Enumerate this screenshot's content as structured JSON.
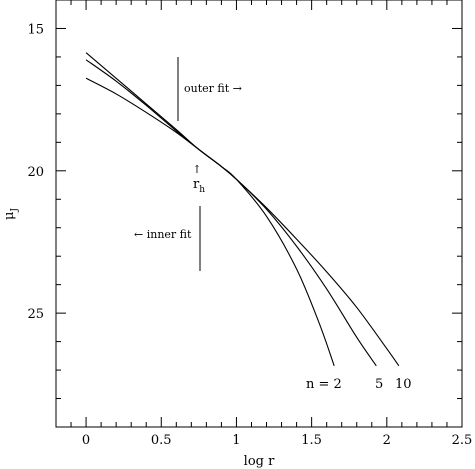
{
  "chart_data": {
    "type": "line",
    "xlabel": "log r",
    "ylabel_main": "μ",
    "ylabel_sub": "J",
    "xlim": [
      -0.2,
      2.5
    ],
    "ylim": [
      29,
      14
    ],
    "y_inverted": true,
    "xticks": [
      0,
      0.5,
      1,
      1.5,
      2,
      2.5
    ],
    "xtick_labels": [
      "0",
      "0.5",
      "1",
      "1.5",
      "2",
      "2.5"
    ],
    "yticks": [
      15,
      20,
      25
    ],
    "ytick_labels": [
      "15",
      "20",
      "25"
    ],
    "grid": false,
    "series": [
      {
        "name": "n = 2",
        "x": [
          0,
          0.2,
          0.4,
          0.6,
          0.75,
          0.9,
          1.0,
          1.2,
          1.4,
          1.55,
          1.65
        ],
        "y": [
          16.75,
          17.3,
          17.95,
          18.65,
          19.25,
          19.85,
          20.3,
          21.6,
          23.45,
          25.35,
          26.85
        ]
      },
      {
        "name": "5",
        "x": [
          0,
          0.2,
          0.4,
          0.6,
          0.75,
          0.9,
          1.0,
          1.2,
          1.4,
          1.6,
          1.8,
          1.93
        ],
        "y": [
          16.1,
          16.85,
          17.7,
          18.6,
          19.25,
          19.85,
          20.3,
          21.35,
          22.65,
          24.15,
          25.85,
          26.85
        ]
      },
      {
        "name": "10",
        "x": [
          0,
          0.2,
          0.4,
          0.6,
          0.75,
          0.9,
          1.0,
          1.2,
          1.4,
          1.6,
          1.8,
          2.0,
          2.08
        ],
        "y": [
          15.85,
          16.75,
          17.65,
          18.55,
          19.25,
          19.85,
          20.3,
          21.3,
          22.4,
          23.55,
          24.8,
          26.25,
          26.85
        ]
      }
    ],
    "annotations": {
      "outer_fit": "outer fit →",
      "inner_fit": "← inner fit",
      "rh_arrow": "↑",
      "rh_main": "r",
      "rh_sub": "h"
    },
    "curve_labels": [
      "n = 2",
      "5",
      "10"
    ]
  }
}
